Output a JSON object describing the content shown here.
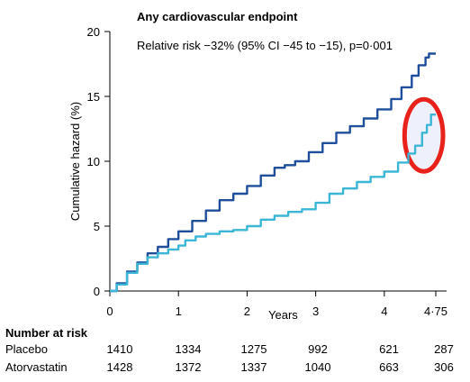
{
  "chart_data": {
    "type": "line",
    "title": "Any cardiovascular endpoint",
    "annotation": "Relative risk −32% (95% CI −45 to −15), p=0·001",
    "xlabel": "Years",
    "ylabel": "Cumulative hazard (%)",
    "xlim": [
      0,
      4.75
    ],
    "ylim": [
      0,
      20
    ],
    "x_ticks": [
      {
        "value": 0,
        "label": "0"
      },
      {
        "value": 1,
        "label": "1"
      },
      {
        "value": 2,
        "label": "2"
      },
      {
        "value": 3,
        "label": "3"
      },
      {
        "value": 4,
        "label": "4"
      },
      {
        "value": 4.75,
        "label": "4·75"
      }
    ],
    "y_ticks": [
      {
        "value": 0,
        "label": "0"
      },
      {
        "value": 5,
        "label": "5"
      },
      {
        "value": 10,
        "label": "10"
      },
      {
        "value": 15,
        "label": "15"
      },
      {
        "value": 20,
        "label": "20"
      }
    ],
    "grid": false,
    "series": [
      {
        "name": "Placebo",
        "color": "#1f4e9c",
        "points": [
          [
            0,
            0
          ],
          [
            0.1,
            0.6
          ],
          [
            0.25,
            1.5
          ],
          [
            0.4,
            2.2
          ],
          [
            0.55,
            2.9
          ],
          [
            0.7,
            3.4
          ],
          [
            0.85,
            4.0
          ],
          [
            1.0,
            4.6
          ],
          [
            1.2,
            5.4
          ],
          [
            1.4,
            6.2
          ],
          [
            1.6,
            7.0
          ],
          [
            1.8,
            7.5
          ],
          [
            2.0,
            8.1
          ],
          [
            2.2,
            8.9
          ],
          [
            2.4,
            9.5
          ],
          [
            2.55,
            9.7
          ],
          [
            2.7,
            10.0
          ],
          [
            2.9,
            10.7
          ],
          [
            3.1,
            11.4
          ],
          [
            3.3,
            12.2
          ],
          [
            3.5,
            12.7
          ],
          [
            3.7,
            13.3
          ],
          [
            3.9,
            14.0
          ],
          [
            4.1,
            14.8
          ],
          [
            4.25,
            15.7
          ],
          [
            4.4,
            16.6
          ],
          [
            4.5,
            17.4
          ],
          [
            4.6,
            18.0
          ],
          [
            4.65,
            18.3
          ],
          [
            4.75,
            18.3
          ]
        ]
      },
      {
        "name": "Atorvastatin",
        "color": "#3bb6d6",
        "points": [
          [
            0,
            0
          ],
          [
            0.1,
            0.5
          ],
          [
            0.25,
            1.4
          ],
          [
            0.4,
            2.1
          ],
          [
            0.55,
            2.6
          ],
          [
            0.7,
            2.9
          ],
          [
            0.85,
            3.2
          ],
          [
            1.0,
            3.5
          ],
          [
            1.1,
            3.9
          ],
          [
            1.25,
            4.2
          ],
          [
            1.4,
            4.4
          ],
          [
            1.6,
            4.6
          ],
          [
            1.8,
            4.7
          ],
          [
            2.0,
            5.0
          ],
          [
            2.2,
            5.5
          ],
          [
            2.4,
            5.8
          ],
          [
            2.6,
            6.1
          ],
          [
            2.8,
            6.3
          ],
          [
            3.0,
            6.8
          ],
          [
            3.2,
            7.5
          ],
          [
            3.4,
            7.9
          ],
          [
            3.6,
            8.4
          ],
          [
            3.8,
            8.8
          ],
          [
            4.0,
            9.2
          ],
          [
            4.2,
            9.9
          ],
          [
            4.35,
            10.6
          ],
          [
            4.45,
            11.2
          ],
          [
            4.55,
            12.2
          ],
          [
            4.62,
            12.8
          ],
          [
            4.68,
            13.6
          ],
          [
            4.75,
            13.6
          ]
        ]
      }
    ],
    "highlight": {
      "shape": "ellipse",
      "color": "#e8211b",
      "fill": "#eef0fb",
      "x_range": [
        4.4,
        4.75
      ],
      "y_range": [
        9.5,
        14.5
      ]
    }
  },
  "number_at_risk": {
    "heading": "Number at risk",
    "rows": [
      {
        "label": "Placebo",
        "values": [
          "1410",
          "1334",
          "1275",
          "992",
          "621",
          "287"
        ]
      },
      {
        "label": "Atorvastatin",
        "values": [
          "1428",
          "1372",
          "1337",
          "1040",
          "663",
          "306"
        ]
      }
    ]
  }
}
